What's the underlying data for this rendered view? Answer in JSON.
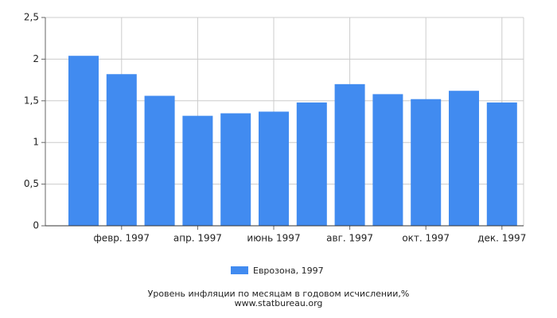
{
  "chart_data": {
    "type": "bar",
    "title": "Уровень инфляции по месяцам в годовом исчислении,%",
    "source": "www.statbureau.org",
    "categories": [
      null,
      "февр. 1997",
      null,
      "апр. 1997",
      null,
      "июнь 1997",
      null,
      "авг. 1997",
      null,
      "окт. 1997",
      null,
      "дек. 1997"
    ],
    "series": [
      {
        "name": "Еврозона, 1997",
        "color": "#418bf0",
        "values": [
          2.04,
          1.82,
          1.56,
          1.32,
          1.35,
          1.37,
          1.48,
          1.7,
          1.58,
          1.52,
          1.62,
          1.48
        ]
      }
    ],
    "ylim": [
      0,
      2.5
    ],
    "yticks": [
      0,
      {
        "value": 0.5,
        "label": "0,5"
      },
      1,
      {
        "value": 1.5,
        "label": "1,5"
      },
      2,
      {
        "value": 2.5,
        "label": "2,5"
      }
    ],
    "grid": true
  }
}
